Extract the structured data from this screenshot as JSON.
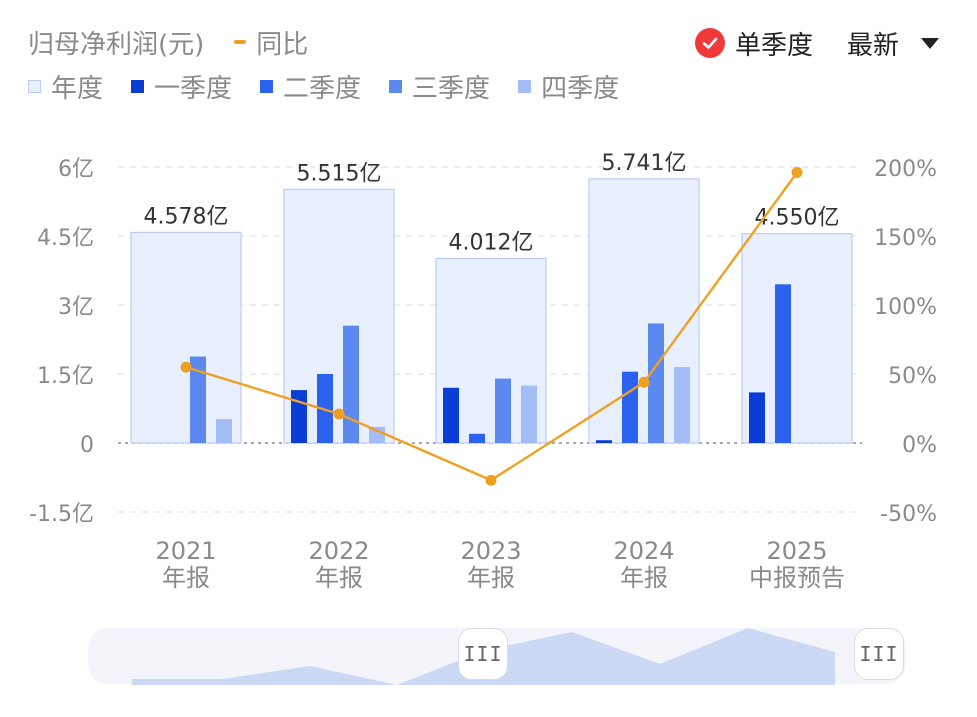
{
  "header": {
    "metric_label": "归母净利润(元)",
    "yoy_label": "同比"
  },
  "controls": {
    "mode_label": "单季度",
    "sort_label": "最新",
    "mode_checked": true
  },
  "legend": [
    {
      "label": "年度",
      "color": "#e8efff"
    },
    {
      "label": "一季度",
      "color": "#0a3dd6"
    },
    {
      "label": "二季度",
      "color": "#2b63f0"
    },
    {
      "label": "三季度",
      "color": "#5c89f0"
    },
    {
      "label": "四季度",
      "color": "#a3bdf7"
    }
  ],
  "chart_data": {
    "type": "bar",
    "categories": [
      [
        "2021",
        "年报"
      ],
      [
        "2022",
        "年报"
      ],
      [
        "2023",
        "年报"
      ],
      [
        "2024",
        "年报"
      ],
      [
        "2025",
        "中报预告"
      ]
    ],
    "annual": {
      "name": "年度",
      "values": [
        4.578,
        5.515,
        4.012,
        5.741,
        4.55
      ],
      "labels": [
        "4.578亿",
        "5.515亿",
        "4.012亿",
        "5.741亿",
        "4.550亿"
      ]
    },
    "series": [
      {
        "name": "一季度",
        "values": [
          0,
          1.15,
          1.2,
          0.06,
          1.1
        ]
      },
      {
        "name": "二季度",
        "values": [
          0,
          1.5,
          0.2,
          1.55,
          3.45
        ]
      },
      {
        "name": "三季度",
        "values": [
          1.88,
          2.55,
          1.4,
          2.6,
          null
        ]
      },
      {
        "name": "四季度",
        "values": [
          0.52,
          0.35,
          1.25,
          1.65,
          null
        ]
      }
    ],
    "yoy": {
      "name": "同比",
      "values": [
        55,
        21,
        -27,
        44,
        196
      ]
    },
    "y_left": {
      "ticks": [
        6,
        4.5,
        3,
        1.5,
        0,
        -1.5
      ],
      "tick_labels": [
        "6亿",
        "4.5亿",
        "3亿",
        "1.5亿",
        "0",
        "-1.5亿"
      ],
      "range": [
        -1.5,
        6
      ]
    },
    "y_right": {
      "ticks": [
        200,
        150,
        100,
        50,
        0,
        -50
      ],
      "tick_labels": [
        "200%",
        "150%",
        "100%",
        "50%",
        "0%",
        "-50%"
      ],
      "range": [
        -50,
        200
      ]
    },
    "grid": true,
    "colors": {
      "yoy_line": "#f0a020",
      "annual_fill": "#e8efff",
      "annual_stroke": "#bccdf3"
    }
  },
  "slider": {
    "handle_glyph": "III",
    "overview_area_color": "#cbd9f5"
  }
}
